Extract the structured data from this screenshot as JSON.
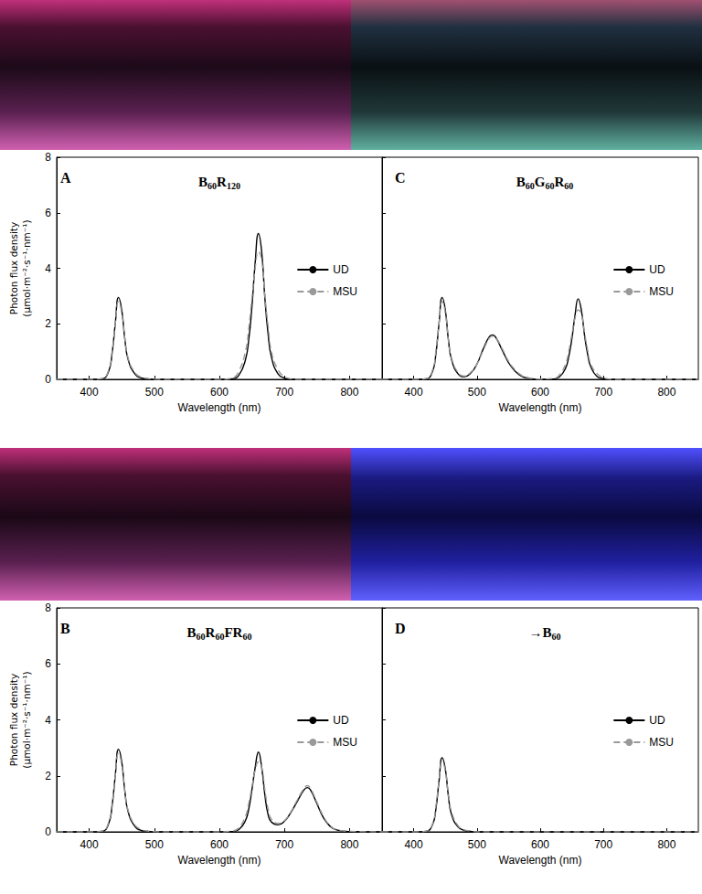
{
  "chart_data": [
    {
      "type": "line",
      "panel": "A",
      "title": "B60R120",
      "xlabel": "Wavelength (nm)",
      "ylabel": "Photon flux density\n(µmol·m⁻²·s⁻¹·nm⁻¹)",
      "x": [
        350,
        400,
        420,
        430,
        435,
        440,
        445,
        450,
        455,
        460,
        470,
        480,
        490,
        500,
        510,
        520,
        525,
        530,
        540,
        550,
        560,
        570,
        580,
        600,
        620,
        630,
        640,
        645,
        650,
        655,
        660,
        665,
        670,
        675,
        680,
        690,
        700,
        710,
        720,
        730,
        735,
        740,
        750,
        760,
        770,
        780,
        800,
        850
      ],
      "series": [
        {
          "name": "UD",
          "color": "#000000",
          "line_style": "solid",
          "values": [
            0,
            0,
            0.02,
            0.3,
            0.9,
            2.0,
            2.95,
            2.5,
            1.4,
            0.7,
            0.2,
            0.05,
            0.02,
            0,
            0,
            0,
            0,
            0,
            0,
            0,
            0,
            0,
            0,
            0,
            0.02,
            0.15,
            0.7,
            1.4,
            2.6,
            4.2,
            5.25,
            4.6,
            2.9,
            1.6,
            0.8,
            0.2,
            0.05,
            0,
            0,
            0,
            0,
            0,
            0,
            0,
            0,
            0,
            0,
            0
          ]
        },
        {
          "name": "MSU",
          "color": "#999999",
          "line_style": "dashed",
          "values": [
            0,
            0,
            0.03,
            0.35,
            1.0,
            2.0,
            2.8,
            2.4,
            1.4,
            0.75,
            0.25,
            0.08,
            0.03,
            0.01,
            0,
            0,
            0,
            0,
            0,
            0,
            0,
            0,
            0,
            0,
            0.05,
            0.3,
            1.0,
            1.8,
            2.9,
            4.0,
            4.6,
            4.3,
            3.0,
            1.9,
            1.0,
            0.35,
            0.1,
            0.02,
            0,
            0,
            0,
            0,
            0,
            0,
            0,
            0,
            0,
            0
          ]
        }
      ],
      "xlim": [
        350,
        850
      ],
      "xticks": [
        400,
        500,
        600,
        700,
        800
      ],
      "ylim": [
        0,
        8
      ],
      "yticks": [
        0,
        2,
        4,
        6,
        8
      ],
      "grid": false,
      "legend": "right"
    },
    {
      "type": "line",
      "panel": "C",
      "title": "B60G60R60",
      "xlabel": "Wavelength (nm)",
      "x": [
        350,
        400,
        420,
        430,
        435,
        440,
        445,
        450,
        455,
        460,
        470,
        480,
        490,
        500,
        510,
        520,
        525,
        530,
        540,
        550,
        560,
        570,
        580,
        600,
        620,
        630,
        640,
        645,
        650,
        655,
        660,
        665,
        670,
        675,
        680,
        690,
        700,
        710,
        720,
        730,
        735,
        740,
        750,
        760,
        770,
        780,
        800,
        850
      ],
      "series": [
        {
          "name": "UD",
          "color": "#000000",
          "line_style": "solid",
          "values": [
            0,
            0,
            0.02,
            0.3,
            0.9,
            2.0,
            2.95,
            2.5,
            1.4,
            0.7,
            0.2,
            0.1,
            0.22,
            0.55,
            1.1,
            1.55,
            1.6,
            1.5,
            1.05,
            0.6,
            0.3,
            0.12,
            0.05,
            0,
            0.01,
            0.08,
            0.4,
            0.8,
            1.45,
            2.3,
            2.9,
            2.5,
            1.6,
            0.9,
            0.45,
            0.1,
            0.03,
            0,
            0,
            0,
            0,
            0,
            0,
            0,
            0,
            0,
            0,
            0
          ]
        },
        {
          "name": "MSU",
          "color": "#999999",
          "line_style": "dashed",
          "values": [
            0,
            0,
            0.03,
            0.35,
            1.0,
            2.0,
            2.8,
            2.4,
            1.4,
            0.75,
            0.25,
            0.12,
            0.25,
            0.55,
            1.05,
            1.5,
            1.55,
            1.5,
            1.1,
            0.65,
            0.35,
            0.15,
            0.06,
            0.01,
            0.03,
            0.15,
            0.55,
            1.0,
            1.6,
            2.2,
            2.5,
            2.35,
            1.7,
            1.05,
            0.55,
            0.2,
            0.06,
            0.01,
            0,
            0,
            0,
            0,
            0,
            0,
            0,
            0,
            0,
            0
          ]
        }
      ],
      "xlim": [
        350,
        850
      ],
      "xticks": [
        400,
        500,
        600,
        700,
        800
      ],
      "ylim": [
        0,
        8
      ],
      "yticks": [
        0,
        2,
        4,
        6,
        8
      ],
      "grid": false,
      "legend": "right",
      "tick_labels": "x"
    },
    {
      "type": "line",
      "panel": "B",
      "title": "B60R60FR60",
      "xlabel": "Wavelength (nm)",
      "ylabel": "Photon flux density\n(µmol·m⁻²·s⁻¹·nm⁻¹)",
      "x": [
        350,
        400,
        420,
        430,
        435,
        440,
        445,
        450,
        455,
        460,
        470,
        480,
        490,
        500,
        510,
        520,
        525,
        530,
        540,
        550,
        560,
        570,
        580,
        600,
        620,
        630,
        640,
        645,
        650,
        655,
        660,
        665,
        670,
        675,
        680,
        690,
        700,
        710,
        720,
        730,
        735,
        740,
        750,
        760,
        770,
        780,
        800,
        850
      ],
      "series": [
        {
          "name": "UD",
          "color": "#000000",
          "line_style": "solid",
          "values": [
            0,
            0,
            0.02,
            0.3,
            0.9,
            2.0,
            2.95,
            2.5,
            1.4,
            0.7,
            0.2,
            0.05,
            0.02,
            0,
            0,
            0,
            0,
            0,
            0,
            0,
            0,
            0,
            0,
            0,
            0.01,
            0.08,
            0.4,
            0.8,
            1.5,
            2.3,
            2.85,
            2.3,
            1.3,
            0.6,
            0.35,
            0.25,
            0.38,
            0.7,
            1.1,
            1.5,
            1.58,
            1.5,
            1.0,
            0.5,
            0.2,
            0.07,
            0.01,
            0
          ]
        },
        {
          "name": "MSU",
          "color": "#999999",
          "line_style": "dashed",
          "values": [
            0,
            0,
            0.03,
            0.35,
            1.0,
            2.0,
            2.8,
            2.4,
            1.4,
            0.75,
            0.25,
            0.08,
            0.03,
            0.01,
            0,
            0,
            0,
            0,
            0,
            0,
            0,
            0,
            0,
            0,
            0.03,
            0.15,
            0.55,
            1.0,
            1.6,
            2.2,
            2.5,
            2.3,
            1.5,
            0.8,
            0.45,
            0.3,
            0.4,
            0.72,
            1.15,
            1.55,
            1.65,
            1.55,
            1.05,
            0.55,
            0.22,
            0.08,
            0.02,
            0
          ]
        }
      ],
      "xlim": [
        350,
        850
      ],
      "xticks": [
        400,
        500,
        600,
        700,
        800
      ],
      "ylim": [
        0,
        8
      ],
      "yticks": [
        0,
        2,
        4,
        6,
        8
      ],
      "grid": false,
      "legend": "right"
    },
    {
      "type": "line",
      "panel": "D",
      "title": "→B60",
      "xlabel": "Wavelength (nm)",
      "x": [
        350,
        400,
        420,
        430,
        435,
        440,
        445,
        450,
        455,
        460,
        470,
        480,
        490,
        500,
        510,
        520,
        525,
        530,
        540,
        550,
        560,
        570,
        580,
        600,
        620,
        630,
        640,
        645,
        650,
        655,
        660,
        665,
        670,
        675,
        680,
        690,
        700,
        710,
        720,
        730,
        735,
        740,
        750,
        760,
        770,
        780,
        800,
        850
      ],
      "series": [
        {
          "name": "UD",
          "color": "#000000",
          "line_style": "solid",
          "values": [
            0,
            0,
            0.02,
            0.27,
            0.8,
            1.8,
            2.65,
            2.25,
            1.25,
            0.6,
            0.18,
            0.05,
            0.02,
            0,
            0,
            0,
            0,
            0,
            0,
            0,
            0,
            0,
            0,
            0,
            0,
            0,
            0,
            0,
            0,
            0,
            0,
            0,
            0,
            0,
            0,
            0,
            0,
            0,
            0,
            0,
            0,
            0,
            0,
            0,
            0,
            0,
            0,
            0
          ]
        },
        {
          "name": "MSU",
          "color": "#999999",
          "line_style": "dashed",
          "values": [
            0,
            0,
            0.03,
            0.3,
            0.9,
            1.8,
            2.5,
            2.2,
            1.3,
            0.7,
            0.22,
            0.07,
            0.03,
            0,
            0,
            0,
            0,
            0,
            0,
            0,
            0,
            0,
            0,
            0,
            0,
            0,
            0,
            0,
            0,
            0,
            0,
            0,
            0,
            0,
            0,
            0,
            0,
            0,
            0,
            0,
            0,
            0,
            0,
            0,
            0,
            0,
            0,
            0
          ]
        }
      ],
      "xlim": [
        350,
        850
      ],
      "xticks": [
        400,
        500,
        600,
        700,
        800
      ],
      "ylim": [
        0,
        8
      ],
      "yticks": [
        0,
        2,
        4,
        6,
        8
      ],
      "grid": false,
      "legend": "right",
      "tick_labels": "x"
    }
  ]
}
